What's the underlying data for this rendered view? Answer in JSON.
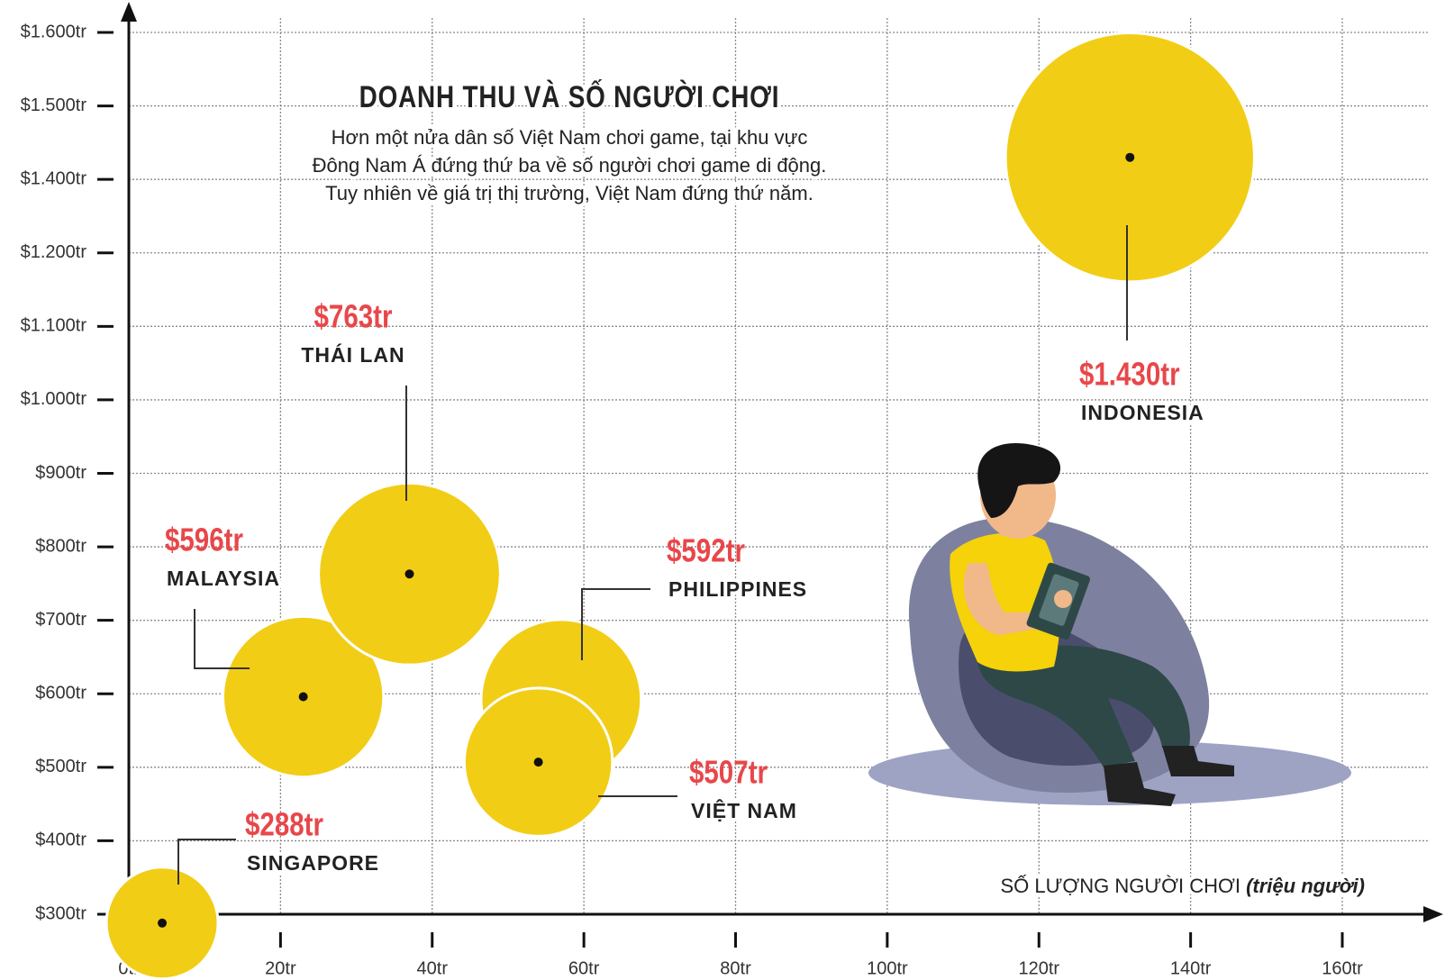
{
  "chart_data": {
    "type": "bubble",
    "title": "DOANH THU VÀ SỐ NGƯỜI CHƠI",
    "subtitle": [
      "Hơn một nửa dân số Việt Nam chơi game, tại khu vực",
      "Đông Nam Á đứng thứ ba về số người chơi game di động.",
      "Tuy nhiên về giá trị thị trường, Việt Nam đứng thứ năm."
    ],
    "xlabel": "SỐ LƯỢNG NGƯỜI CHƠI",
    "xlabel_note": "(triệu người)",
    "names": [
      "SINGAPORE",
      "MALAYSIA",
      "THÁI LAN",
      "PHILIPPINES",
      "VIỆT NAM",
      "INDONESIA"
    ],
    "x": [
      4.4,
      23,
      37,
      57,
      54,
      132
    ],
    "values": [
      288,
      596,
      763,
      592,
      507,
      1430
    ],
    "value_labels": [
      "$288tr",
      "$596tr",
      "$763tr",
      "$592tr",
      "$507tr",
      "$1.430tr"
    ],
    "color": "#f2cd16",
    "label_color": "#e8474a",
    "xlim": [
      0,
      160
    ],
    "ylim": [
      300,
      1600
    ],
    "xticks": [
      {
        "value": 0,
        "label": "0tr"
      },
      {
        "value": 20,
        "label": "20tr"
      },
      {
        "value": 40,
        "label": "40tr"
      },
      {
        "value": 60,
        "label": "60tr"
      },
      {
        "value": 80,
        "label": "80tr"
      },
      {
        "value": 100,
        "label": "100tr"
      },
      {
        "value": 120,
        "label": "120tr"
      },
      {
        "value": 140,
        "label": "140tr"
      },
      {
        "value": 160,
        "label": "160tr"
      }
    ],
    "yticks": [
      {
        "value": 300,
        "label": "$300tr"
      },
      {
        "value": 400,
        "label": "$400tr"
      },
      {
        "value": 500,
        "label": "$500tr"
      },
      {
        "value": 600,
        "label": "$600tr"
      },
      {
        "value": 700,
        "label": "$700tr"
      },
      {
        "value": 800,
        "label": "$800tr"
      },
      {
        "value": 900,
        "label": "$900tr"
      },
      {
        "value": 1000,
        "label": "$1.000tr"
      },
      {
        "value": 1100,
        "label": "$1.100tr"
      },
      {
        "value": 1200,
        "label": "$1.200tr"
      },
      {
        "value": 1400,
        "label": "$1.400tr"
      },
      {
        "value": 1500,
        "label": "$1.500tr"
      },
      {
        "value": 1600,
        "label": "$1.600tr"
      }
    ],
    "grid": true
  }
}
